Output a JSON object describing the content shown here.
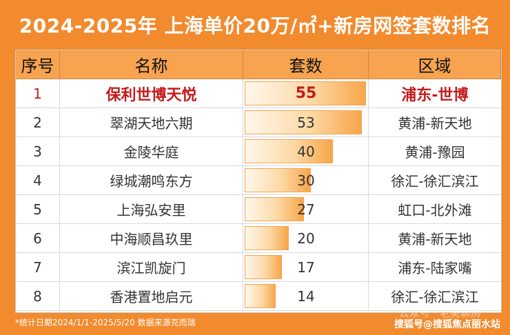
{
  "title": "2024-2025年 上海单价20万/㎡+新房网签套数排名",
  "headers": {
    "index": "序号",
    "name": "名称",
    "count": "套数",
    "area": "区域"
  },
  "chart_data": {
    "type": "table",
    "title": "2024-2025年 上海单价20万/㎡+新房网签套数排名",
    "xlim": [
      0,
      55
    ],
    "rows": [
      {
        "index": "1",
        "name": "保利世博天悦",
        "count": 55,
        "area": "浦东-世博"
      },
      {
        "index": "2",
        "name": "翠湖天地六期",
        "count": 53,
        "area": "黄浦-新天地"
      },
      {
        "index": "3",
        "name": "金陵华庭",
        "count": 40,
        "area": "黄浦-豫园"
      },
      {
        "index": "4",
        "name": "绿城潮鸣东方",
        "count": 30,
        "area": "徐汇-徐汇滨江"
      },
      {
        "index": "5",
        "name": "上海弘安里",
        "count": 27,
        "area": "虹口-北外滩"
      },
      {
        "index": "6",
        "name": "中海顺昌玖里",
        "count": 20,
        "area": "黄浦-新天地"
      },
      {
        "index": "7",
        "name": "滨江凯旋门",
        "count": 17,
        "area": "浦东-陆家嘴"
      },
      {
        "index": "8",
        "name": "香港置地启元",
        "count": 14,
        "area": "徐汇-徐汇滨江"
      }
    ]
  },
  "footnote": "*统计日期2024/1/1-2025/5/20 数据来源克而瑞",
  "watermark": "公众号 · 老吴聊房",
  "credit": "搜狐号@搜狐焦点丽水站",
  "colors": {
    "background": "#f28a2e",
    "header": "#f7a350",
    "highlight": "#c41a1a",
    "bar": "#f7a64a"
  }
}
